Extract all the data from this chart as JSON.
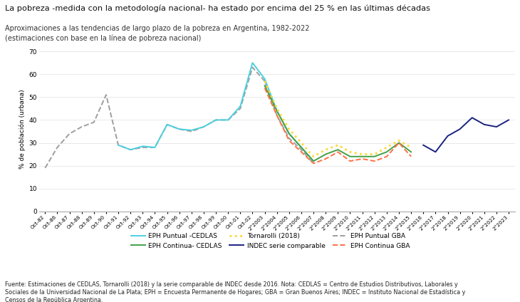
{
  "title": "La pobreza -medida con la metodología nacional- ha estado por encima del 25 % en las últimas décadas",
  "subtitle1": "Aproximaciones a las tendencias de largo plazo de la pobreza en Argentina, 1982-2022",
  "subtitle2": "(estimaciones con base en la línea de pobreza nacional)",
  "ylabel": "% de población (urbana)",
  "footnote_bold": "Fuente:",
  "footnote_normal": " Estimaciones de CEDLAS, Tornarolli (2018) y la serie comparable de INDEC desde 2016. ",
  "footnote_bold2": "Nota:",
  "footnote_normal2": " CEDLAS = Centro de Estudios Distributivos, Laborales y Sociales de la Universidad Nacional de La Plata; EPH = Encuesta Permanente de Hogares; GBA = Gran Buenos Aires; INDEC = Instituto Nacional de Estadística y Censos de la República Argentina.",
  "EPH_Puntual_CEDLAS_x": [
    "Oct-91",
    "Oct-92",
    "Oct-93",
    "Oct-94",
    "Oct-95",
    "Oct-96",
    "Oct-97",
    "Oct-98",
    "Oct-99",
    "Oct-00",
    "Oct-01",
    "Oct-02",
    "2°2003",
    "2°2004",
    "2°2005",
    "2°2006",
    "2°2007"
  ],
  "EPH_Puntual_CEDLAS_y": [
    29,
    27,
    28.5,
    28,
    38,
    36,
    35.5,
    37,
    40,
    40,
    46,
    65,
    58,
    44,
    34,
    28,
    22
  ],
  "EPH_Continua_CEDLAS_x": [
    "2°2003",
    "2°2004",
    "2°2005",
    "2°2006",
    "2°2007",
    "2°2008",
    "2°2009",
    "2°2010",
    "2°2011",
    "2°2012",
    "2°2013",
    "2°2014",
    "2°2015"
  ],
  "EPH_Continua_CEDLAS_y": [
    55,
    44,
    34,
    28,
    22,
    25,
    27,
    24,
    24,
    24,
    26,
    30,
    26
  ],
  "Tornarolli_x": [
    "2°2003",
    "2°2004",
    "2°2005",
    "2°2006",
    "2°2007",
    "2°2008",
    "2°2009",
    "2°2010",
    "2°2011",
    "2°2012",
    "2°2013",
    "2°2014",
    "2°2015"
  ],
  "Tornarolli_y": [
    57,
    45,
    36,
    30,
    24,
    27,
    29,
    26,
    25,
    25,
    28,
    31,
    28
  ],
  "INDEC_serie_x": [
    "2°2016",
    "2°2017",
    "2°2018",
    "2°2019",
    "2°2020",
    "2°2021",
    "2°2022",
    "2°2023"
  ],
  "INDEC_serie_y": [
    29,
    26,
    33,
    36,
    41,
    38,
    37,
    40
  ],
  "EPH_Puntual_GBA_x": [
    "Oct-82",
    "Oct-86",
    "Oct-87",
    "Oct-88",
    "Oct-89",
    "Oct-90",
    "Oct-91",
    "Oct-92",
    "Oct-93",
    "Oct-94",
    "Oct-95",
    "Oct-96",
    "Oct-97",
    "Oct-98",
    "Oct-99",
    "Oct-00",
    "Oct-01",
    "Oct-02",
    "2°2003",
    "2°2004",
    "2°2005",
    "2°2006",
    "2°2007"
  ],
  "EPH_Puntual_GBA_y": [
    19,
    28,
    34,
    37,
    39,
    51,
    29,
    27,
    28,
    28,
    38,
    36,
    35,
    37,
    40,
    40,
    45,
    63,
    57,
    42,
    32,
    27,
    21
  ],
  "EPH_Continua_GBA_x": [
    "2°2003",
    "2°2004",
    "2°2005",
    "2°2006",
    "2°2007",
    "2°2008",
    "2°2009",
    "2°2010",
    "2°2011",
    "2°2012",
    "2°2013",
    "2°2014",
    "2°2015"
  ],
  "EPH_Continua_GBA_y": [
    54,
    42,
    31,
    26,
    21,
    23,
    26,
    22,
    23,
    22,
    24,
    30,
    24
  ],
  "colors": {
    "EPH_Puntual_CEDLAS": "#4dd0e1",
    "EPH_Continua_CEDLAS": "#43a047",
    "Tornarolli": "#fdd835",
    "INDEC_serie": "#1a237e",
    "EPH_Puntual_GBA": "#9e9e9e",
    "EPH_Continua_GBA": "#ff7043"
  },
  "all_xticks": [
    "Oct-82",
    "Oct-86",
    "Oct-87",
    "Oct-88",
    "Oct-89",
    "Oct-90",
    "Oct-91",
    "Oct-92",
    "Oct-93",
    "Oct-94",
    "Oct-95",
    "Oct-96",
    "Oct-97",
    "Oct-98",
    "Oct-99",
    "Oct-00",
    "Oct-01",
    "Oct-02",
    "2°2003",
    "2°2004",
    "2°2005",
    "2°2006",
    "2°2007",
    "2°2008",
    "2°2009",
    "2°2010",
    "2°2011",
    "2°2012",
    "2°2013",
    "2°2014",
    "2°2015",
    "2°2016",
    "2°2017",
    "2°2018",
    "2°2019",
    "2°2020",
    "2°2021",
    "2°2022",
    "2°2023"
  ],
  "ylim": [
    0,
    72
  ],
  "yticks": [
    0,
    10,
    20,
    30,
    40,
    50,
    60,
    70
  ]
}
